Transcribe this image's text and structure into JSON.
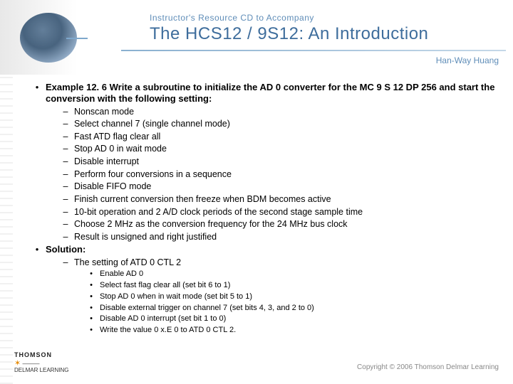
{
  "header": {
    "subtitle": "Instructor's Resource CD to Accompany",
    "title": "The HCS12 / 9S12: An Introduction",
    "author": "Han-Way Huang",
    "colors": {
      "accent": "#3e6d9c",
      "light": "#5f8db8"
    }
  },
  "main": {
    "example_heading": "Example 12. 6 Write a subroutine to initialize the AD 0 converter for the MC 9 S 12 DP 256 and start the conversion with the following setting:",
    "settings": [
      "Nonscan mode",
      "Select channel 7 (single channel mode)",
      "Fast ATD flag clear all",
      "Stop AD 0 in wait mode",
      "Disable interrupt",
      "Perform four conversions in a sequence",
      "Disable FIFO mode",
      "Finish current conversion then freeze when BDM becomes active",
      "10-bit operation and 2 A/D clock periods of the second stage sample time",
      "Choose 2 MHz as the conversion frequency for the 24 MHz bus clock",
      "Result is unsigned and right justified"
    ],
    "solution_label": "Solution:",
    "solution_sub": "The setting of ATD 0 CTL 2",
    "solution_items": [
      "Enable AD 0",
      "Select fast flag clear all (set bit 6 to 1)",
      "Stop AD 0 when in wait mode (set bit 5 to 1)",
      "Disable external trigger on channel 7 (set bits 4, 3, and 2 to 0)",
      "Disable AD 0 interrupt (set bit 1 to 0)",
      "Write the value 0 x.E 0 to ATD 0 CTL 2."
    ]
  },
  "footer": {
    "publisher_top": "THOMSON",
    "publisher_bottom": "DELMAR LEARNING",
    "copyright": "Copyright © 2006 Thomson Delmar Learning"
  }
}
